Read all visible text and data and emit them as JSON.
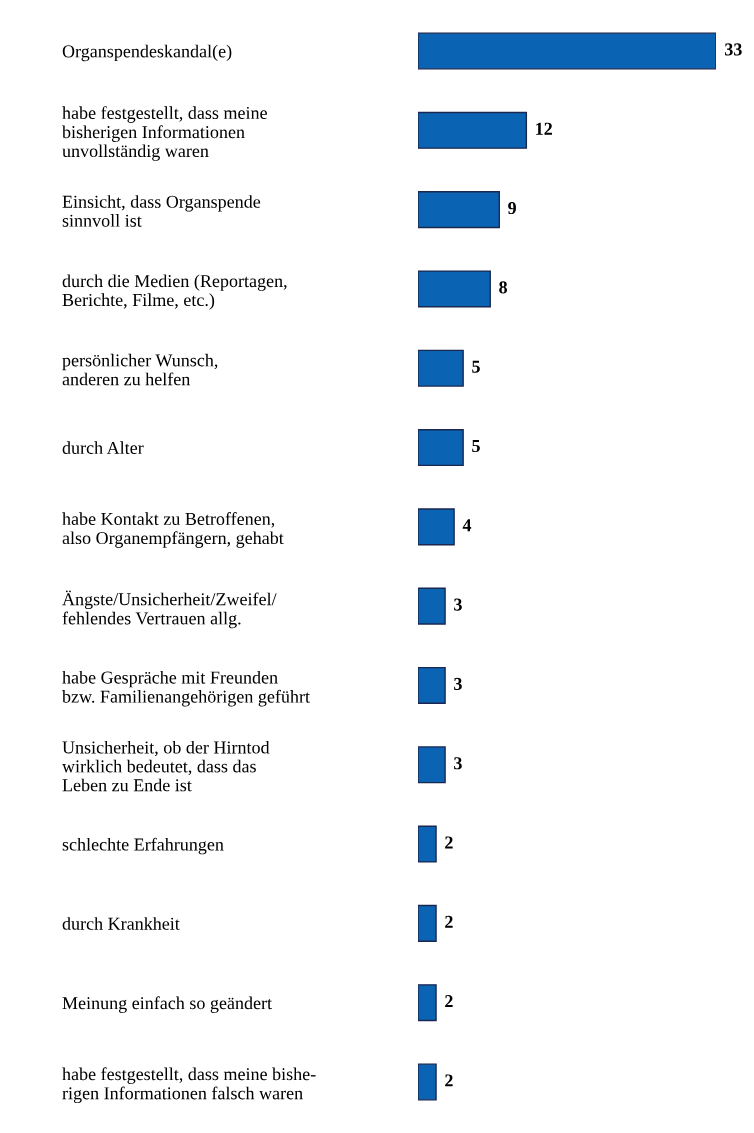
{
  "chart_data": {
    "type": "bar",
    "orientation": "horizontal",
    "categories": [
      "Organspendeskandal(e)",
      "habe festgestellt, dass meine\nbisherigen Informationen\nunvollständig waren",
      "Einsicht, dass Organspende\nsinnvoll ist",
      "durch die Medien (Reportagen,\nBerichte, Filme, etc.)",
      "persönlicher Wunsch,\nanderen zu helfen",
      "durch Alter",
      "habe Kontakt zu Betroffenen,\nalso Organempfängern, gehabt",
      "Ängste/Unsicherheit/Zweifel/\nfehlendes Vertrauen allg.",
      "habe Gespräche mit Freunden\nbzw. Familienangehörigen geführt",
      "Unsicherheit, ob der Hirntod\nwirklich bedeutet, dass das\nLeben zu Ende ist",
      "schlechte Erfahrungen",
      "durch Krankheit",
      "Meinung einfach so geändert",
      "habe festgestellt, dass meine bishe-\nrigen Informationen falsch waren"
    ],
    "values": [
      33,
      12,
      9,
      8,
      5,
      5,
      4,
      3,
      3,
      3,
      2,
      2,
      2,
      2
    ],
    "color": "#0a63b3",
    "data_labels": true,
    "tick_labels": "y",
    "grid": false,
    "legend": false
  }
}
